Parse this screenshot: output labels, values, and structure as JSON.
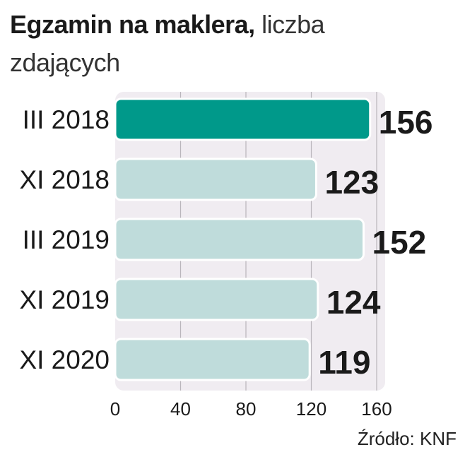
{
  "title": {
    "bold": "Egzamin na maklera,",
    "rest": " liczba zdających"
  },
  "source": "Źródło: KNF",
  "colors": {
    "panel": "#f0ecf1",
    "gridline": "#b9b5bb",
    "bar_highlight": "#00998a",
    "bar_default": "#bfdcdb",
    "bar_border": "#ffffff",
    "text": "#1a1a1a"
  },
  "chart_data": {
    "type": "bar",
    "orientation": "horizontal",
    "categories": [
      "III 2018",
      "XI 2018",
      "III 2019",
      "XI 2019",
      "XI 2020"
    ],
    "values": [
      156,
      123,
      152,
      124,
      119
    ],
    "highlight_index": 0,
    "xlim": [
      0,
      160
    ],
    "xticks": [
      0,
      40,
      80,
      120,
      160
    ],
    "grid": true,
    "data_labels": true
  }
}
